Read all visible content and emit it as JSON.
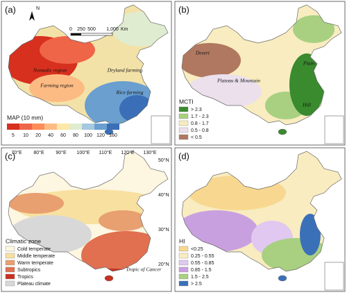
{
  "panels": [
    {
      "label": "(a)",
      "north": "N",
      "scale_bar": [
        "0",
        "250",
        "500",
        "1,000",
        "Km"
      ],
      "regions": [
        "Nomadic region",
        "Dryland farming",
        "Farming region",
        "Rice farming"
      ],
      "legend": {
        "title": "MAP (10 mm)",
        "items": [
          "5",
          "10",
          "20",
          "40",
          "60",
          "80",
          "100",
          "120",
          "160"
        ],
        "colors": [
          "#d7301f",
          "#ef6548",
          "#fc8d59",
          "#fdbb84",
          "#fee8a8",
          "#e0ecd0",
          "#a6c8e0",
          "#6a9fd0",
          "#3a6fb8"
        ]
      }
    },
    {
      "label": "(b)",
      "regions": [
        "Desert",
        "Plateau & Mountain",
        "Plain",
        "Hill"
      ],
      "legend": {
        "title": "MCTI",
        "items": [
          "> 2.3",
          "1.7 - 2.3",
          "0.8 - 1.7",
          "0.5 - 0.8",
          "< 0.5"
        ],
        "colors": [
          "#3a8a2e",
          "#a8d080",
          "#f8ecc0",
          "#ece0ec",
          "#b07860"
        ]
      }
    },
    {
      "label": "(c)",
      "longitudes": [
        "70°E",
        "80°E",
        "90°E",
        "100°E",
        "110°E",
        "120°E",
        "130°E"
      ],
      "latitudes": [
        "50°N",
        "40°N",
        "30°N",
        "20°N"
      ],
      "regions": [
        "Tropic of Cancer"
      ],
      "legend": {
        "title": "Climatic zone",
        "items": [
          "Cold temperate",
          "Middle temperate",
          "Warm temperate",
          "Subtropics",
          "Tropics",
          "Plateau climate"
        ],
        "colors": [
          "#fdf6e0",
          "#f8e0a0",
          "#e8a070",
          "#e07050",
          "#c83020",
          "#d8d8d8"
        ]
      }
    },
    {
      "label": "(d)",
      "legend": {
        "title": "HI",
        "items": [
          "<0.25",
          "0.25 - 0.55",
          "0.55 - 0.85",
          "0.85 - 1.5",
          "1.5 - 2.5",
          "> 2.5"
        ],
        "colors": [
          "#f8d890",
          "#f8ecc0",
          "#e0c8f0",
          "#c8a0e0",
          "#a8d080",
          "#3a70b8"
        ]
      }
    }
  ]
}
